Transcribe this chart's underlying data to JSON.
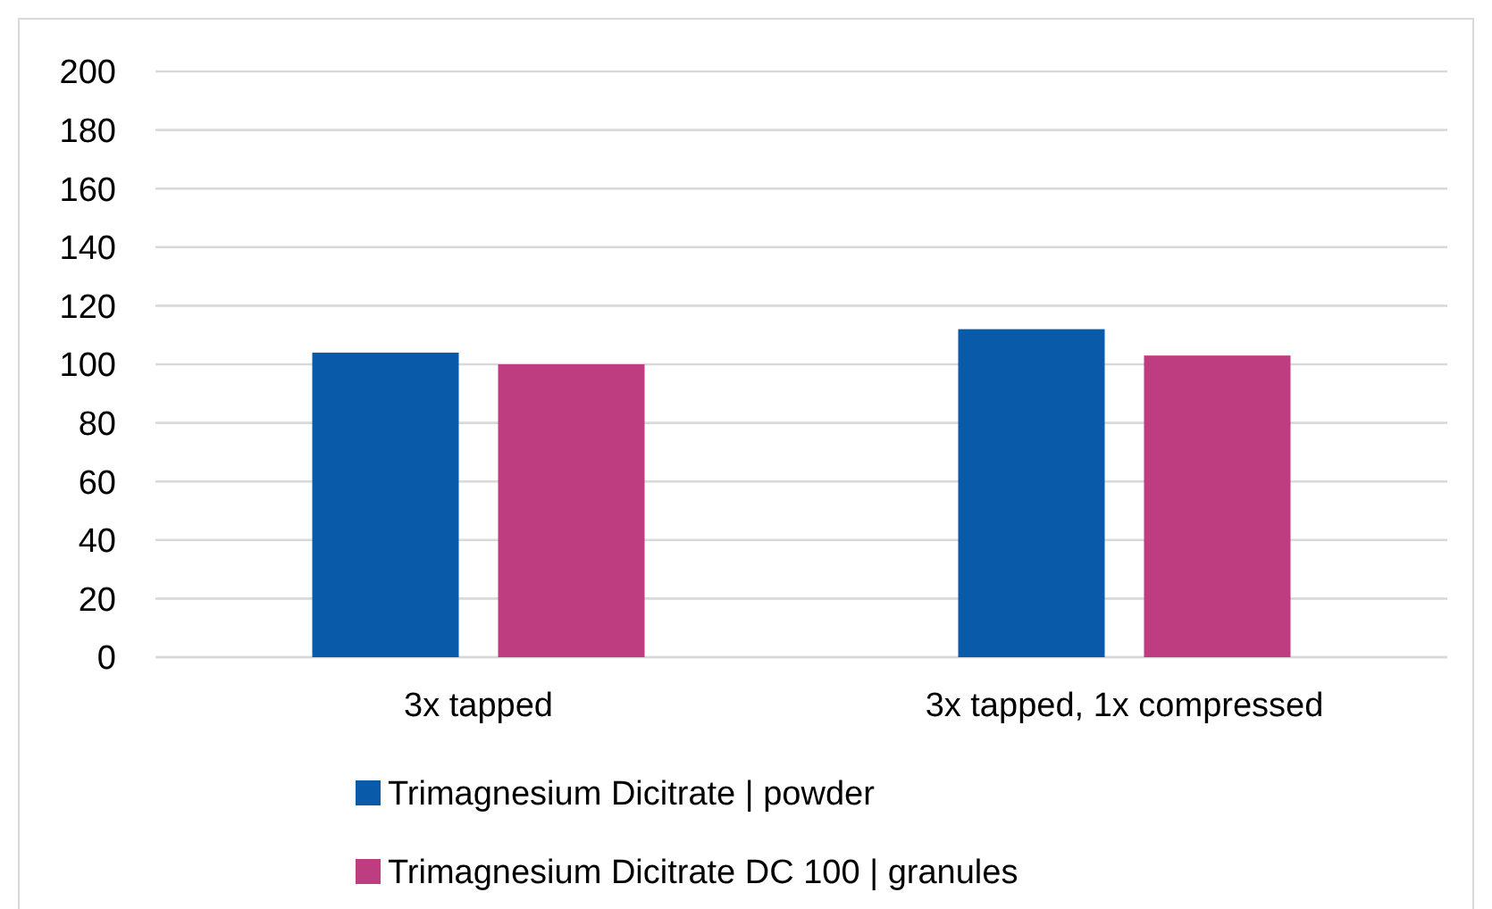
{
  "chart_data": {
    "type": "bar",
    "categories": [
      "3x tapped",
      "3x tapped, 1x compressed"
    ],
    "series": [
      {
        "name": "Trimagnesium Dicitrate | powder",
        "color": "#0a5aaa",
        "values": [
          104,
          112
        ]
      },
      {
        "name": "Trimagnesium Dicitrate DC 100 | granules",
        "color": "#be3c80",
        "values": [
          100,
          103
        ]
      }
    ],
    "ylim": [
      0,
      200
    ],
    "yticks": [
      0,
      20,
      40,
      60,
      80,
      100,
      120,
      140,
      160,
      180,
      200
    ],
    "grid": "y",
    "legend": "bottom"
  }
}
